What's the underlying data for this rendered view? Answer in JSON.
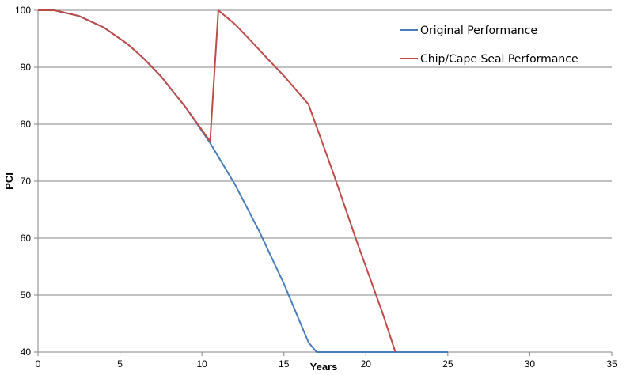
{
  "chart_data": {
    "type": "line",
    "title": "",
    "xlabel": "Years",
    "ylabel": "PCI",
    "xlim": [
      0,
      35
    ],
    "ylim": [
      40,
      100
    ],
    "xticks": [
      0,
      5,
      10,
      15,
      20,
      25,
      30,
      35
    ],
    "yticks": [
      40,
      50,
      60,
      70,
      80,
      90,
      100
    ],
    "grid": "horizontal",
    "legend_position": "top-right",
    "series": [
      {
        "name": "Original Performance",
        "color": "#4a7ebb",
        "x": [
          0,
          1,
          2.5,
          4,
          5.5,
          6.5,
          7.5,
          9,
          10.5,
          12,
          13.5,
          15,
          16.5,
          17,
          20,
          25
        ],
        "y": [
          100,
          100,
          99,
          97,
          94,
          91.4,
          88.4,
          83,
          76.7,
          69.5,
          61.2,
          52,
          41.7,
          40,
          40,
          40
        ]
      },
      {
        "name": "Chip/Cape Seal Performance",
        "color": "#be4b48",
        "x": [
          0,
          1,
          2.5,
          4,
          5.5,
          6.5,
          7.5,
          9,
          10.5,
          11,
          12,
          13,
          14,
          15,
          16.5,
          18,
          19.5,
          21,
          21.8
        ],
        "y": [
          100,
          100,
          99,
          97,
          94,
          91.4,
          88.4,
          83,
          77,
          100,
          97.6,
          94.6,
          91.5,
          88.5,
          83.5,
          71.5,
          59,
          47,
          40
        ]
      }
    ]
  }
}
